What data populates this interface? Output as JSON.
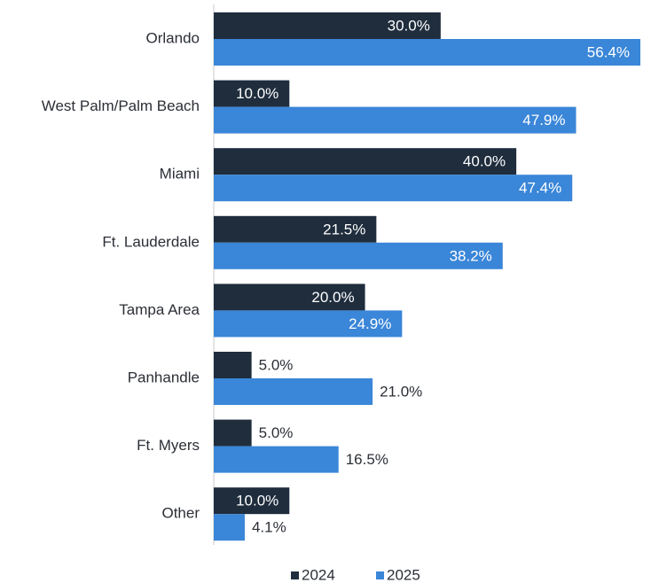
{
  "chart_data": {
    "type": "hbar",
    "categories": [
      "Orlando",
      "West Palm/Palm Beach",
      "Miami",
      "Ft. Lauderdale",
      "Tampa Area",
      "Panhandle",
      "Ft. Myers",
      "Other"
    ],
    "series": [
      {
        "name": "2024",
        "color": "#1f2d3d",
        "values": [
          30.0,
          10.0,
          40.0,
          21.5,
          20.0,
          5.0,
          5.0,
          10.0
        ],
        "value_labels": [
          "30.0%",
          "10.0%",
          "40.0%",
          "21.5%",
          "20.0%",
          "5.0%",
          "5.0%",
          "10.0%"
        ]
      },
      {
        "name": "2025",
        "color": "#3a86d8",
        "values": [
          56.4,
          47.9,
          47.4,
          38.2,
          24.9,
          21.0,
          16.5,
          4.1
        ],
        "value_labels": [
          "56.4%",
          "47.9%",
          "47.4%",
          "38.2%",
          "24.9%",
          "21.0%",
          "16.5%",
          "4.1%"
        ]
      }
    ],
    "legend": "bottom"
  }
}
